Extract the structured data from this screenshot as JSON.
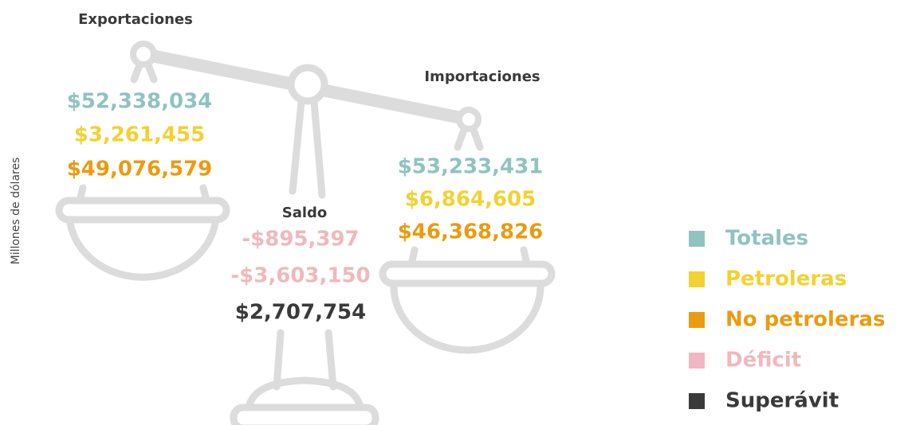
{
  "axis_label": "Millones de dólares",
  "groups": [
    {
      "title": "Exportaciones",
      "values": [
        {
          "text": "$52,338,034",
          "color": "#8fc3c0"
        },
        {
          "text": "$3,261,455",
          "color": "#f2d231"
        },
        {
          "text": "$49,076,579",
          "color": "#eb9b10"
        }
      ]
    },
    {
      "title": "Importaciones",
      "values": [
        {
          "text": "$53,233,431",
          "color": "#8fc3c0"
        },
        {
          "text": "$6,864,605",
          "color": "#f2d231"
        },
        {
          "text": "$46,368,826",
          "color": "#eb9b10"
        }
      ]
    },
    {
      "title": "Saldo",
      "values": [
        {
          "text": "-$895,397",
          "color": "#f0b8bd"
        },
        {
          "text": "-$3,603,150",
          "color": "#f0b8bd"
        },
        {
          "text": "$2,707,754",
          "color": "#3a3a3a"
        }
      ]
    }
  ],
  "legend": [
    {
      "label": "Totales",
      "color": "#8fc3c0"
    },
    {
      "label": "Petroleras",
      "color": "#f2d231"
    },
    {
      "label": "No petroleras",
      "color": "#eb9b10"
    },
    {
      "label": "Déficit",
      "color": "#f0b8bd"
    },
    {
      "label": "Superávit",
      "color": "#3a3a3a"
    }
  ]
}
